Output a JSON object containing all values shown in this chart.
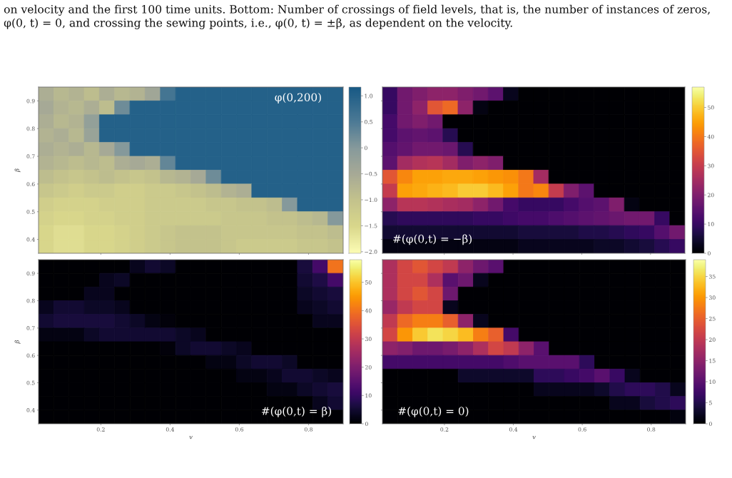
{
  "chart_data": [
    {
      "type": "heatmap",
      "title": "φ(0,200)",
      "ylabel": "β",
      "tick_labels": "y",
      "annotations": [
        "on velocity and the first 100 time units. Bottom: Number of crossings of field levels, that is, the number of instances of zeros, φ(0, t) = 0, and crossing the sewing points, i.e., φ(0, t) = ±β, as dependent on the velocity."
      ],
      "x": [
        0.042,
        0.086,
        0.13,
        0.174,
        0.218,
        0.262,
        0.306,
        0.35,
        0.394,
        0.438,
        0.482,
        0.526,
        0.57,
        0.614,
        0.658,
        0.702,
        0.746,
        0.79,
        0.834,
        0.878
      ],
      "y": [
        0.925,
        0.875,
        0.825,
        0.775,
        0.725,
        0.675,
        0.625,
        0.575,
        0.525,
        0.475,
        0.425,
        0.375
      ],
      "xlim": [
        0.02,
        0.9
      ],
      "ylim": [
        0.35,
        0.95
      ],
      "xticks": [
        0.2,
        0.4,
        0.6,
        0.8
      ],
      "yticks": [
        0.4,
        0.5,
        0.6,
        0.7,
        0.8,
        0.9
      ],
      "clim": [
        -2.03,
        1.17
      ],
      "cticks": [
        {
          "value": 1.0,
          "label": "1.0"
        },
        0.5,
        0,
        {
          "value": -0.5,
          "label": "−0.5"
        },
        {
          "value": -1.0,
          "label": "−1.0"
        },
        {
          "value": -1.5,
          "label": "−1.5"
        },
        {
          "value": -2.0,
          "label": "−2.0"
        }
      ],
      "cells": [
        [
          -0.6,
          -0.8,
          -0.7,
          -0.9,
          -0.6,
          -0.8,
          -0.7,
          -0.4,
          0.6,
          1.0,
          1.0,
          1.0,
          1.0,
          1.0,
          1.0,
          1.0,
          1.0,
          1.0,
          1.0,
          1.0
        ],
        [
          -0.5,
          -0.7,
          -0.8,
          -0.6,
          -0.9,
          0.2,
          1.0,
          1.0,
          1.0,
          1.0,
          1.0,
          1.0,
          1.0,
          1.0,
          1.0,
          1.0,
          1.0,
          1.0,
          1.0,
          1.0
        ],
        [
          -0.6,
          -0.8,
          -0.7,
          -0.2,
          1.0,
          1.0,
          1.0,
          1.0,
          1.0,
          1.0,
          1.0,
          1.0,
          1.0,
          1.0,
          1.0,
          1.0,
          1.0,
          1.0,
          1.0,
          1.0
        ],
        [
          -0.7,
          -0.6,
          -0.8,
          -0.3,
          1.0,
          1.0,
          1.0,
          1.0,
          1.0,
          1.0,
          1.0,
          1.0,
          1.0,
          1.0,
          1.0,
          1.0,
          1.0,
          1.0,
          1.0,
          1.0
        ],
        [
          -0.6,
          -0.7,
          -0.6,
          -0.8,
          -0.5,
          0.0,
          1.0,
          1.0,
          1.0,
          1.0,
          1.0,
          1.0,
          1.0,
          1.0,
          1.0,
          1.0,
          1.0,
          1.0,
          1.0,
          1.0
        ],
        [
          -0.7,
          -0.8,
          -0.9,
          -0.8,
          -0.9,
          -0.6,
          -0.5,
          -0.6,
          0.3,
          1.0,
          1.0,
          1.0,
          1.0,
          1.0,
          1.0,
          1.0,
          1.0,
          1.0,
          1.0,
          1.0
        ],
        [
          -0.9,
          -1.0,
          -1.1,
          -1.0,
          -0.9,
          -1.0,
          -1.1,
          -1.0,
          -0.8,
          -0.7,
          -0.5,
          0.2,
          1.0,
          1.0,
          1.0,
          1.0,
          1.0,
          1.0,
          1.0,
          1.0
        ],
        [
          -1.1,
          -1.2,
          -1.3,
          -1.2,
          -1.2,
          -1.3,
          -1.3,
          -1.2,
          -1.2,
          -1.1,
          -1.0,
          -0.9,
          -0.7,
          -0.6,
          1.0,
          1.0,
          1.0,
          1.0,
          1.0,
          1.0
        ],
        [
          -1.3,
          -1.4,
          -1.4,
          -1.4,
          -1.3,
          -1.3,
          -1.3,
          -1.2,
          -1.2,
          -1.2,
          -1.2,
          -1.1,
          -1.1,
          -1.0,
          -1.0,
          -0.9,
          0.0,
          1.0,
          1.0,
          1.0
        ],
        [
          -1.4,
          -1.5,
          -1.5,
          -1.4,
          -1.4,
          -1.3,
          -1.3,
          -1.2,
          -1.2,
          -1.2,
          -1.2,
          -1.2,
          -1.1,
          -1.1,
          -1.1,
          -1.0,
          -1.0,
          -0.9,
          -0.8,
          0.0
        ],
        [
          -1.5,
          -1.6,
          -1.6,
          -1.5,
          -1.5,
          -1.4,
          -1.3,
          -1.2,
          -1.1,
          -1.0,
          -1.0,
          -1.0,
          -1.1,
          -1.1,
          -1.1,
          -1.1,
          -1.1,
          -1.0,
          -1.0,
          -0.9
        ],
        [
          -1.5,
          -1.6,
          -1.6,
          -1.5,
          -1.5,
          -1.4,
          -1.3,
          -1.2,
          -1.1,
          -1.0,
          -1.0,
          -1.0,
          -1.1,
          -1.2,
          -1.2,
          -1.2,
          -1.2,
          -1.1,
          -1.1,
          -1.0
        ]
      ]
    },
    {
      "type": "heatmap",
      "title": "#(φ(0,t) = −β)",
      "tick_labels": false,
      "x": [
        0.042,
        0.086,
        0.13,
        0.174,
        0.218,
        0.262,
        0.306,
        0.35,
        0.394,
        0.438,
        0.482,
        0.526,
        0.57,
        0.614,
        0.658,
        0.702,
        0.746,
        0.79,
        0.834,
        0.878
      ],
      "y": [
        0.925,
        0.875,
        0.825,
        0.775,
        0.725,
        0.675,
        0.625,
        0.575,
        0.525,
        0.475,
        0.425,
        0.375
      ],
      "xlim": [
        0.02,
        0.9
      ],
      "ylim": [
        0.35,
        0.95
      ],
      "xticks": [
        0.2,
        0.4,
        0.6,
        0.8
      ],
      "yticks": [
        0.4,
        0.5,
        0.6,
        0.7,
        0.8,
        0.9
      ],
      "clim": [
        0,
        57
      ],
      "cticks": [
        0,
        10,
        20,
        30,
        40,
        50
      ],
      "cells": [
        [
          10,
          18,
          20,
          22,
          22,
          20,
          18,
          15,
          3,
          0,
          0,
          0,
          0,
          0,
          0,
          0,
          0,
          0,
          0,
          0
        ],
        [
          10,
          18,
          22,
          35,
          38,
          22,
          2,
          0,
          0,
          0,
          0,
          0,
          0,
          0,
          0,
          0,
          0,
          0,
          0,
          0
        ],
        [
          12,
          18,
          20,
          18,
          0,
          0,
          0,
          0,
          0,
          0,
          0,
          0,
          0,
          0,
          0,
          0,
          0,
          0,
          0,
          0
        ],
        [
          12,
          15,
          16,
          15,
          8,
          0,
          0,
          0,
          0,
          0,
          0,
          0,
          0,
          0,
          0,
          0,
          0,
          0,
          0,
          0
        ],
        [
          14,
          16,
          18,
          18,
          17,
          8,
          0,
          0,
          0,
          0,
          0,
          0,
          0,
          0,
          0,
          0,
          0,
          0,
          0,
          0
        ],
        [
          15,
          25,
          27,
          28,
          25,
          20,
          22,
          20,
          0,
          0,
          0,
          0,
          0,
          0,
          0,
          0,
          0,
          0,
          0,
          0
        ],
        [
          35,
          42,
          45,
          45,
          46,
          46,
          45,
          44,
          43,
          40,
          25,
          0,
          0,
          0,
          0,
          0,
          0,
          0,
          0,
          0
        ],
        [
          30,
          45,
          46,
          47,
          48,
          50,
          50,
          48,
          45,
          40,
          42,
          30,
          20,
          15,
          0,
          0,
          0,
          0,
          0,
          0
        ],
        [
          22,
          28,
          28,
          27,
          26,
          25,
          22,
          18,
          12,
          10,
          10,
          10,
          12,
          14,
          15,
          20,
          2,
          0,
          0,
          0
        ],
        [
          8,
          9,
          9,
          9,
          9,
          9,
          10,
          10,
          11,
          12,
          12,
          13,
          14,
          15,
          16,
          17,
          18,
          18,
          10,
          0
        ],
        [
          5,
          5,
          5,
          5,
          5,
          5,
          5,
          5,
          5,
          6,
          6,
          6,
          6,
          7,
          7,
          8,
          9,
          10,
          14,
          18
        ],
        [
          2,
          2,
          2,
          2,
          2,
          2,
          2,
          2,
          2,
          3,
          3,
          3,
          3,
          3,
          4,
          4,
          5,
          6,
          8,
          10
        ]
      ]
    },
    {
      "type": "heatmap",
      "title": "#(φ(0,t) = β)",
      "xlabel": "v",
      "ylabel": "β",
      "x": [
        0.042,
        0.086,
        0.13,
        0.174,
        0.218,
        0.262,
        0.306,
        0.35,
        0.394,
        0.438,
        0.482,
        0.526,
        0.57,
        0.614,
        0.658,
        0.702,
        0.746,
        0.79,
        0.834,
        0.878
      ],
      "y": [
        0.925,
        0.875,
        0.825,
        0.775,
        0.725,
        0.675,
        0.625,
        0.575,
        0.525,
        0.475,
        0.425,
        0.375
      ],
      "xlim": [
        0.02,
        0.9
      ],
      "ylim": [
        0.35,
        0.95
      ],
      "xticks": [
        0.2,
        0.4,
        0.6,
        0.8
      ],
      "yticks": [
        0.4,
        0.5,
        0.6,
        0.7,
        0.8,
        0.9
      ],
      "clim": [
        0,
        58
      ],
      "cticks": [
        0,
        10,
        20,
        30,
        40,
        50
      ],
      "cells": [
        [
          0,
          0,
          0,
          0,
          0,
          0,
          3,
          5,
          4,
          0,
          0,
          0,
          0,
          0,
          0,
          0,
          0,
          6,
          12,
          40
        ],
        [
          0,
          0,
          0,
          0,
          3,
          4,
          0,
          0,
          0,
          0,
          0,
          0,
          0,
          0,
          0,
          0,
          0,
          5,
          7,
          12
        ],
        [
          0,
          0,
          0,
          3,
          3,
          0,
          0,
          0,
          0,
          0,
          0,
          0,
          0,
          0,
          0,
          0,
          0,
          4,
          5,
          6
        ],
        [
          3,
          5,
          5,
          4,
          4,
          3,
          0,
          0,
          0,
          0,
          0,
          0,
          0,
          0,
          0,
          0,
          0,
          3,
          4,
          5
        ],
        [
          5,
          6,
          6,
          6,
          6,
          5,
          4,
          2,
          1,
          0,
          0,
          0,
          0,
          0,
          0,
          0,
          0,
          0,
          3,
          3
        ],
        [
          2,
          2,
          2,
          4,
          5,
          5,
          5,
          5,
          5,
          4,
          3,
          0,
          0,
          0,
          0,
          0,
          0,
          0,
          0,
          0
        ],
        [
          0,
          0,
          0,
          0,
          0,
          0,
          0,
          0,
          1,
          4,
          5,
          5,
          4,
          3,
          0,
          0,
          0,
          0,
          0,
          0
        ],
        [
          0,
          0,
          0,
          0,
          0,
          0,
          0,
          0,
          0,
          0,
          0,
          2,
          2,
          4,
          5,
          5,
          4,
          0,
          0,
          0
        ],
        [
          0,
          0,
          0,
          0,
          0,
          0,
          0,
          0,
          0,
          0,
          0,
          0,
          0,
          2,
          2,
          3,
          5,
          5,
          4,
          3
        ],
        [
          0,
          0,
          0,
          0,
          0,
          0,
          0,
          0,
          0,
          0,
          0,
          0,
          0,
          0,
          0,
          2,
          2,
          4,
          5,
          6
        ],
        [
          0,
          0,
          0,
          0,
          0,
          0,
          0,
          0,
          0,
          0,
          0,
          0,
          0,
          0,
          0,
          0,
          0,
          0,
          3,
          5
        ],
        [
          0,
          0,
          0,
          0,
          0,
          0,
          0,
          0,
          0,
          0,
          0,
          0,
          0,
          0,
          0,
          0,
          0,
          0,
          0,
          0
        ]
      ]
    },
    {
      "type": "heatmap",
      "title": "#(φ(0,t) = 0)",
      "xlabel": "v",
      "tick_labels": "x",
      "x": [
        0.042,
        0.086,
        0.13,
        0.174,
        0.218,
        0.262,
        0.306,
        0.35,
        0.394,
        0.438,
        0.482,
        0.526,
        0.57,
        0.614,
        0.658,
        0.702,
        0.746,
        0.79,
        0.834,
        0.878
      ],
      "y": [
        0.925,
        0.875,
        0.825,
        0.775,
        0.725,
        0.675,
        0.625,
        0.575,
        0.525,
        0.475,
        0.425,
        0.375
      ],
      "xlim": [
        0.02,
        0.9
      ],
      "ylim": [
        0.35,
        0.95
      ],
      "xticks": [
        0.2,
        0.4,
        0.6,
        0.8
      ],
      "yticks": [
        0.4,
        0.5,
        0.6,
        0.7,
        0.8,
        0.9
      ],
      "clim": [
        0,
        39
      ],
      "cticks": [
        0,
        5,
        10,
        15,
        20,
        25,
        30,
        35
      ],
      "cells": [
        [
          18,
          22,
          24,
          22,
          20,
          15,
          12,
          10,
          0,
          0,
          0,
          0,
          0,
          0,
          0,
          0,
          0,
          0,
          0,
          0
        ],
        [
          18,
          22,
          22,
          18,
          10,
          12,
          2,
          0,
          0,
          0,
          0,
          0,
          0,
          0,
          0,
          0,
          0,
          0,
          0,
          0
        ],
        [
          18,
          22,
          24,
          22,
          12,
          0,
          0,
          0,
          0,
          0,
          0,
          0,
          0,
          0,
          0,
          0,
          0,
          0,
          0,
          0
        ],
        [
          16,
          20,
          22,
          22,
          2,
          0,
          0,
          0,
          0,
          0,
          0,
          0,
          0,
          0,
          0,
          0,
          0,
          0,
          0,
          0
        ],
        [
          20,
          26,
          28,
          28,
          25,
          15,
          2,
          0,
          0,
          0,
          0,
          0,
          0,
          0,
          0,
          0,
          0,
          0,
          0,
          0
        ],
        [
          22,
          30,
          34,
          36,
          35,
          33,
          28,
          25,
          8,
          0,
          0,
          0,
          0,
          0,
          0,
          0,
          0,
          0,
          0,
          0
        ],
        [
          15,
          14,
          12,
          12,
          13,
          15,
          18,
          22,
          20,
          15,
          10,
          0,
          0,
          0,
          0,
          0,
          0,
          0,
          0,
          0
        ],
        [
          8,
          8,
          8,
          8,
          8,
          8,
          8,
          8,
          9,
          10,
          10,
          10,
          10,
          6,
          0,
          0,
          0,
          0,
          0,
          0
        ],
        [
          0,
          0,
          0,
          0,
          0,
          3,
          3,
          3,
          3,
          3,
          6,
          6,
          7,
          8,
          10,
          7,
          2,
          0,
          0,
          0
        ],
        [
          0,
          0,
          0,
          0,
          0,
          0,
          0,
          0,
          0,
          0,
          2,
          2,
          2,
          2,
          3,
          5,
          6,
          6,
          5,
          2
        ],
        [
          0,
          0,
          0,
          0,
          0,
          0,
          0,
          0,
          0,
          0,
          0,
          0,
          0,
          0,
          0,
          2,
          2,
          4,
          5,
          6
        ],
        [
          0,
          0,
          0,
          0,
          0,
          0,
          0,
          0,
          0,
          0,
          0,
          0,
          0,
          0,
          0,
          0,
          0,
          0,
          0,
          1
        ]
      ]
    }
  ]
}
